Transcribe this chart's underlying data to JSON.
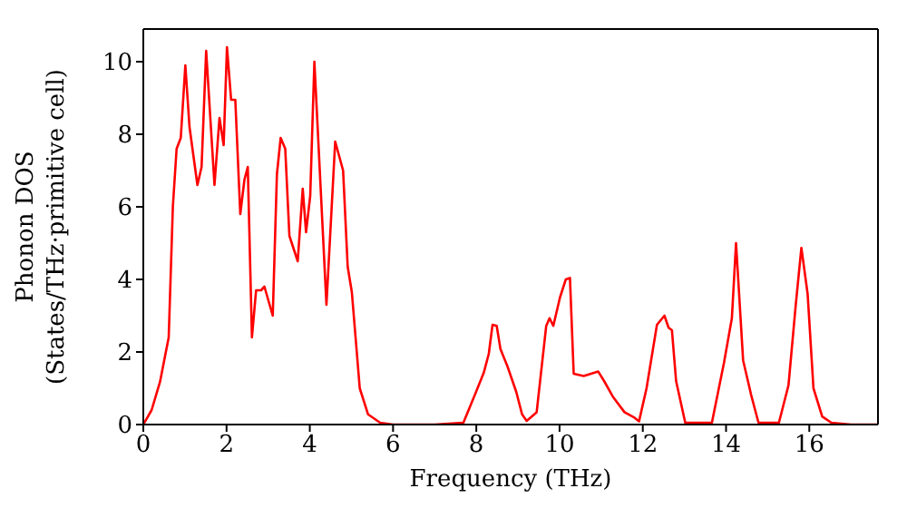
{
  "chart_data": {
    "type": "line",
    "xlabel": "Frequency (THz)",
    "ylabel": "Phonon DOS\n(States/THz·primitive cell)",
    "xlim": [
      0,
      17.65
    ],
    "ylim": [
      0,
      10.9
    ],
    "xticks": [
      0,
      2,
      4,
      6,
      8,
      10,
      12,
      14,
      16
    ],
    "yticks": [
      0,
      2,
      4,
      6,
      8,
      10
    ],
    "grid": false,
    "legend": false,
    "marker": "none",
    "line_style": "solid",
    "series": [
      {
        "color": "#ff0000",
        "x": [
          0,
          0.2,
          0.4,
          0.61,
          0.71,
          0.8,
          0.9,
          1.01,
          1.11,
          1.3,
          1.4,
          1.51,
          1.71,
          1.83,
          1.93,
          2.01,
          2.11,
          2.21,
          2.33,
          2.43,
          2.51,
          2.61,
          2.71,
          2.83,
          2.91,
          3.11,
          3.21,
          3.3,
          3.41,
          3.51,
          3.71,
          3.83,
          3.91,
          4.01,
          4.11,
          4.4,
          4.61,
          4.8,
          4.91,
          5.01,
          5.2,
          5.4,
          5.69,
          6,
          7,
          7.69,
          7.97,
          8.18,
          8.3,
          8.39,
          8.49,
          8.58,
          8.75,
          8.96,
          9.1,
          9.21,
          9.45,
          9.68,
          9.76,
          9.85,
          10.01,
          10.15,
          10.25,
          10.34,
          10.58,
          10.93,
          11.07,
          11.28,
          11.56,
          11.8,
          11.91,
          12.09,
          12.34,
          12.52,
          12.62,
          12.7,
          12.8,
          13.02,
          13.66,
          13.95,
          14.14,
          14.24,
          14.41,
          14.6,
          14.78,
          15.27,
          15.5,
          15.67,
          15.81,
          15.96,
          16.1,
          16.31,
          16.53,
          17,
          17.65
        ],
        "values": [
          0,
          0.4,
          1.17,
          2.4,
          6.0,
          7.6,
          7.9,
          9.9,
          8.2,
          6.6,
          7.1,
          10.3,
          6.6,
          8.45,
          7.7,
          10.4,
          8.95,
          8.95,
          5.8,
          6.75,
          7.1,
          2.4,
          3.7,
          3.7,
          3.8,
          3.0,
          6.9,
          7.9,
          7.6,
          5.2,
          4.5,
          6.5,
          5.3,
          6.3,
          10.0,
          3.3,
          7.8,
          7.0,
          4.35,
          3.65,
          1.0,
          0.28,
          0.05,
          0,
          0,
          0.05,
          0.83,
          1.43,
          1.95,
          2.75,
          2.72,
          2.08,
          1.6,
          0.9,
          0.28,
          0.1,
          0.34,
          2.72,
          2.93,
          2.72,
          3.5,
          4.0,
          4.04,
          1.4,
          1.34,
          1.46,
          1.2,
          0.77,
          0.34,
          0.19,
          0.09,
          1.0,
          2.75,
          3.0,
          2.67,
          2.6,
          1.2,
          0.05,
          0.05,
          1.7,
          2.93,
          5.0,
          1.77,
          0.83,
          0.05,
          0.05,
          1.08,
          3.24,
          4.87,
          3.6,
          1.0,
          0.22,
          0.05,
          0,
          0
        ]
      }
    ]
  }
}
